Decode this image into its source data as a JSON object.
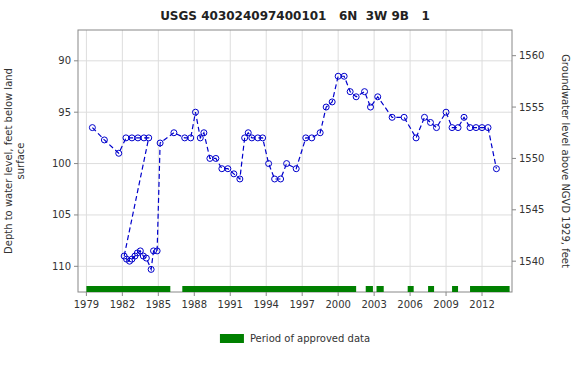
{
  "chart_data": {
    "type": "line",
    "title": "USGS 403024097400101   6N  3W 9B   1",
    "y_label": "Depth to water level, feet below land\nsurface",
    "y2_label": "Groundwater level above NGVD 1929, feet",
    "x": [
      1979.5,
      1980.5,
      1981.7,
      1982.3,
      1982.8,
      1983.3,
      1983.8,
      1984.2,
      1982.15,
      1982.35,
      1982.6,
      1982.8,
      1983.05,
      1983.25,
      1983.5,
      1983.75,
      1984.0,
      1984.4,
      1984.6,
      1984.9,
      1985.15,
      1986.3,
      1987.2,
      1987.7,
      1988.1,
      1988.5,
      1988.8,
      1989.3,
      1989.8,
      1990.3,
      1990.8,
      1991.3,
      1991.8,
      1992.2,
      1992.5,
      1992.8,
      1993.3,
      1993.7,
      1994.2,
      1994.7,
      1995.2,
      1995.7,
      1996.5,
      1997.3,
      1997.8,
      1998.5,
      1999.0,
      1999.5,
      2000.0,
      2000.5,
      2001.0,
      2001.5,
      2002.2,
      2002.7,
      2003.3,
      2004.5,
      2005.5,
      2006.5,
      2007.2,
      2007.7,
      2008.2,
      2009.0,
      2009.5,
      2010.0,
      2010.5,
      2011.0,
      2011.5,
      2012.0,
      2012.5,
      2013.2
    ],
    "series": [
      {
        "color": "#0000cc",
        "marker": "circle",
        "line_style": "dashed",
        "values": [
          96.5,
          97.7,
          99.0,
          97.5,
          97.5,
          97.5,
          97.5,
          97.5,
          109.0,
          109.3,
          109.5,
          109.3,
          109.0,
          108.7,
          108.5,
          109.0,
          109.2,
          110.3,
          108.5,
          108.5,
          98.0,
          97.0,
          97.5,
          97.5,
          95.0,
          97.5,
          97.0,
          99.5,
          99.5,
          100.5,
          100.5,
          101.0,
          101.5,
          97.5,
          97.0,
          97.5,
          97.5,
          97.5,
          100.0,
          101.5,
          101.5,
          100.0,
          100.5,
          97.5,
          97.5,
          97.0,
          94.5,
          94.0,
          91.5,
          91.5,
          93.0,
          93.5,
          93.0,
          94.5,
          93.5,
          95.5,
          95.5,
          97.5,
          95.5,
          96.0,
          96.5,
          95.0,
          96.5,
          96.5,
          95.5,
          96.5,
          96.5,
          96.5,
          96.5,
          100.5
        ]
      }
    ],
    "periods": {
      "name": "Period of approved data",
      "color": "#008000",
      "ranges": [
        [
          1979.0,
          1986.0
        ],
        [
          1987.0,
          2001.5
        ],
        [
          2002.3,
          2002.9
        ],
        [
          2003.2,
          2003.8
        ],
        [
          2005.8,
          2006.3
        ],
        [
          2007.5,
          2008.0
        ],
        [
          2009.5,
          2010.0
        ],
        [
          2011.0,
          2014.3
        ]
      ]
    },
    "xlim": [
      1978.3,
      2014.5
    ],
    "xticks": [
      1979,
      1982,
      1985,
      1988,
      1991,
      1994,
      1997,
      2000,
      2003,
      2006,
      2009,
      2012
    ],
    "ylim": [
      112.5,
      87.0
    ],
    "yticks": [
      90,
      95,
      100,
      105,
      110
    ],
    "y2lim": [
      1537,
      1562.5
    ],
    "y2ticks": [
      1540,
      1545,
      1550,
      1555,
      1560
    ],
    "grid": true,
    "legend": "bottom"
  }
}
